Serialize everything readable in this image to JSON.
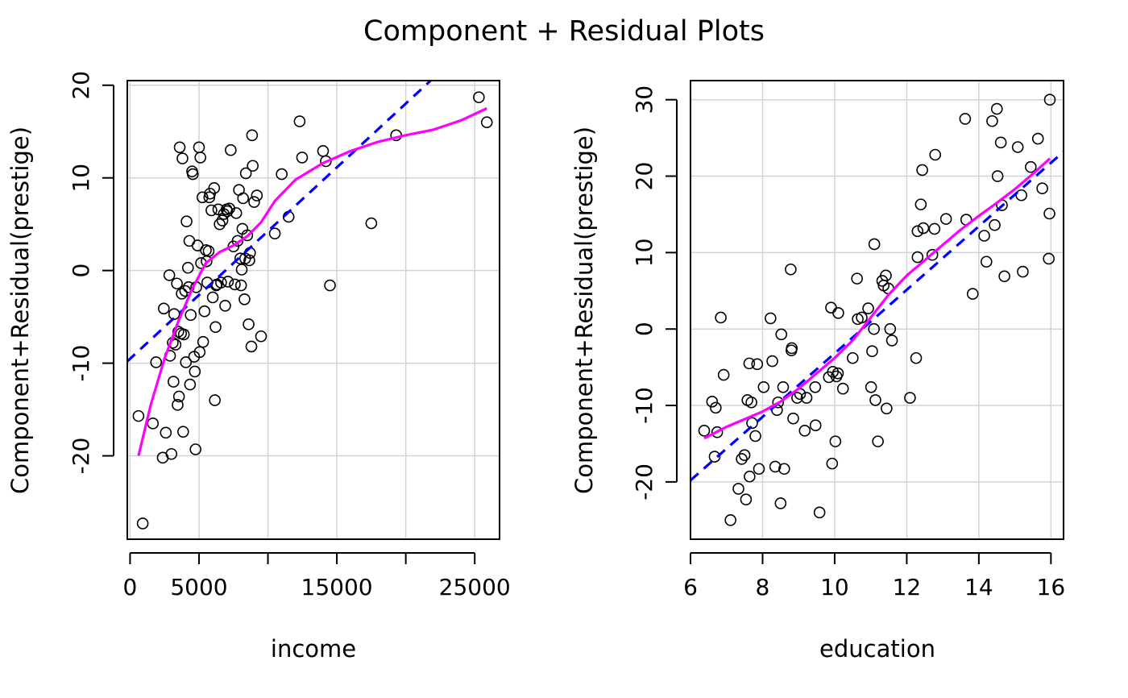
{
  "title": "Component + Residual Plots",
  "colors": {
    "points": "#000000",
    "fit_line": "#0000ff",
    "smooth_line": "#ff00ff",
    "grid": "#d3d3d3"
  },
  "chart_data": [
    {
      "type": "scatter",
      "xlabel": "income",
      "ylabel": "Component+Residual(prestige)",
      "xlim": [
        -200,
        26800
      ],
      "ylim": [
        -29,
        20.5
      ],
      "xticks": [
        0,
        5000,
        10000,
        15000,
        20000,
        25000
      ],
      "xtick_labels": [
        "0",
        "5000",
        "",
        "15000",
        "",
        "25000"
      ],
      "yticks": [
        -20,
        -10,
        0,
        10,
        20
      ],
      "ytick_labels": [
        "-20",
        "-10",
        "0",
        "10",
        "20"
      ],
      "grid": true,
      "linear_fit": {
        "x": [
          -200,
          21800
        ],
        "y": [
          -9.8,
          20.5
        ]
      },
      "smooth": {
        "x": [
          611,
          1500,
          2500,
          3500,
          4500,
          5500,
          6500,
          7500,
          8500,
          9500,
          10500,
          12000,
          14000,
          16000,
          18000,
          20000,
          22000,
          24000,
          25879
        ],
        "y": [
          -20,
          -14.5,
          -9.5,
          -5.5,
          -2,
          0.8,
          2,
          2.7,
          3.7,
          5.2,
          7.5,
          9.8,
          11.6,
          12.9,
          13.9,
          14.6,
          15.2,
          16.2,
          17.5
        ]
      },
      "points": {
        "x": [
          611,
          918,
          1656,
          1890,
          2370,
          2448,
          2594,
          2847,
          2901,
          3000,
          3100,
          3150,
          3200,
          3300,
          3400,
          3450,
          3500,
          3550,
          3600,
          3700,
          3750,
          3800,
          3850,
          3900,
          4000,
          4050,
          4100,
          4200,
          4250,
          4300,
          4350,
          4400,
          4500,
          4550,
          4650,
          4700,
          4750,
          4800,
          4900,
          5000,
          5050,
          5100,
          5150,
          5250,
          5300,
          5400,
          5500,
          5550,
          5600,
          5700,
          5750,
          5800,
          5900,
          6000,
          6100,
          6150,
          6200,
          6250,
          6300,
          6400,
          6500,
          6600,
          6700,
          6800,
          6900,
          7000,
          7050,
          7100,
          7200,
          7300,
          7500,
          7600,
          7700,
          7800,
          7900,
          8000,
          8050,
          8100,
          8150,
          8200,
          8300,
          8350,
          8400,
          8500,
          8600,
          8650,
          8700,
          8800,
          8850,
          8900,
          9000,
          9200,
          9500,
          10500,
          11000,
          11500,
          12300,
          12480,
          14000,
          14200,
          14500,
          17500,
          19300,
          25300,
          25879
        ],
        "y": [
          -15.7,
          -27.3,
          -16.5,
          -9.9,
          -20.2,
          -4.1,
          -17.5,
          -0.5,
          -9.2,
          -19.8,
          -7.8,
          -12,
          -4.7,
          -8,
          -1.4,
          -14.5,
          -6.6,
          -13.6,
          13.3,
          -6.8,
          -2.5,
          12.1,
          -17.4,
          -6.9,
          -2.2,
          -9.9,
          5.3,
          0.3,
          -1.8,
          3.2,
          -12.3,
          -4.8,
          10.7,
          10.4,
          -9.3,
          -10.9,
          -19.3,
          -1.8,
          2.7,
          13.3,
          -8.8,
          12.2,
          0.8,
          7.9,
          -7.7,
          -4.4,
          2.2,
          1,
          -1.3,
          2.1,
          7.9,
          8.3,
          6.5,
          -2.9,
          8.9,
          -14,
          -6.1,
          -1.6,
          -1.5,
          6.6,
          5,
          -1.3,
          5.4,
          6.1,
          -3.8,
          6.6,
          6.4,
          -1.2,
          6.7,
          13,
          2.6,
          -1.5,
          6.2,
          3.2,
          8.7,
          1.3,
          -1.6,
          0.1,
          4.5,
          7.8,
          -3.1,
          1.3,
          10.5,
          3.8,
          -5.8,
          1.1,
          1.9,
          -8.2,
          14.6,
          11.3,
          7.4,
          8.1,
          -7.1,
          4,
          10.4,
          5.8,
          16.1,
          12.2,
          12.9,
          11.8,
          -1.6,
          5.1,
          14.6,
          18.7,
          16
        ]
      }
    },
    {
      "type": "scatter",
      "xlabel": "education",
      "ylabel": "Component+Residual(prestige)",
      "xlim": [
        6,
        16.35
      ],
      "ylim": [
        -27.5,
        32.5
      ],
      "xticks": [
        6,
        8,
        10,
        12,
        14,
        16
      ],
      "xtick_labels": [
        "6",
        "8",
        "10",
        "12",
        "14",
        "16"
      ],
      "yticks": [
        -20,
        -10,
        0,
        10,
        20,
        30
      ],
      "ytick_labels": [
        "-20",
        "-10",
        "0",
        "10",
        "20",
        "30"
      ],
      "grid": true,
      "linear_fit": {
        "x": [
          6,
          16.35
        ],
        "y": [
          -19.8,
          23.2
        ]
      },
      "smooth": {
        "x": [
          6.38,
          7,
          7.5,
          8,
          8.5,
          9,
          9.5,
          10,
          10.5,
          11,
          11.5,
          12,
          12.5,
          13,
          13.5,
          14,
          14.5,
          15,
          15.5,
          15.97
        ],
        "y": [
          -14.3,
          -12.8,
          -11.8,
          -10.8,
          -9.5,
          -7.8,
          -5.8,
          -3.8,
          -1.5,
          1.5,
          4.5,
          7,
          9,
          11,
          13,
          14.8,
          16.5,
          18.3,
          20.3,
          22.3
        ]
      },
      "points": {
        "x": [
          6.38,
          6.6,
          6.67,
          6.7,
          6.74,
          6.84,
          6.92,
          7.11,
          7.33,
          7.42,
          7.5,
          7.54,
          7.58,
          7.63,
          7.64,
          7.69,
          7.71,
          7.8,
          7.85,
          7.9,
          8.03,
          8.22,
          8.27,
          8.35,
          8.4,
          8.43,
          8.5,
          8.52,
          8.57,
          8.6,
          8.78,
          8.8,
          8.81,
          8.85,
          8.96,
          9.04,
          9.17,
          9.22,
          9.46,
          9.47,
          9.58,
          9.84,
          9.9,
          9.93,
          9.95,
          10.02,
          10.05,
          10.09,
          10.1,
          10.23,
          10.5,
          10.62,
          10.64,
          10.75,
          10.93,
          11.01,
          11.04,
          11.09,
          11.1,
          11.13,
          11.2,
          11.32,
          11.36,
          11.42,
          11.44,
          11.49,
          11.54,
          11.59,
          12.09,
          12.26,
          12.3,
          12.3,
          12.39,
          12.43,
          12.46,
          12.71,
          12.77,
          12.79,
          13.09,
          13.62,
          13.65,
          13.83,
          14.15,
          14.21,
          14.37,
          14.44,
          14.5,
          14.52,
          14.61,
          14.64,
          14.71,
          15.08,
          15.18,
          15.22,
          15.44,
          15.64,
          15.76,
          15.94,
          15.96,
          15.97
        ],
        "y": [
          -13.3,
          -9.5,
          -16.7,
          -10.3,
          -13.5,
          1.5,
          -6,
          -25,
          -20.9,
          -17,
          -16.5,
          -22.3,
          -9.3,
          -4.5,
          -19.3,
          -9.6,
          -12.3,
          -14,
          -4.6,
          -18.3,
          -7.6,
          1.4,
          -4.2,
          -18,
          -10.6,
          -9.6,
          -22.8,
          -0.7,
          -7.6,
          -18.3,
          7.8,
          -2.8,
          -2.5,
          -11.7,
          -9,
          -8.5,
          -13.3,
          -9,
          -7.6,
          -12.6,
          -24,
          -6.3,
          2.8,
          -17.6,
          -5.6,
          -14.7,
          -6.2,
          -5.8,
          2.1,
          -7.8,
          -3.8,
          6.6,
          1.3,
          1.5,
          2.7,
          -7.6,
          -2.9,
          0.0,
          11.1,
          -9.3,
          -14.7,
          6.3,
          5.7,
          7,
          -10.4,
          5.3,
          0.0,
          -1.5,
          -9,
          -3.8,
          9.4,
          12.8,
          16.3,
          20.8,
          13.2,
          9.7,
          13.1,
          22.8,
          14.4,
          27.5,
          14.3,
          4.6,
          12.2,
          8.8,
          27.2,
          13.6,
          28.8,
          20,
          24.4,
          16.2,
          6.9,
          23.8,
          17.5,
          7.5,
          21.2,
          24.9,
          18.4,
          9.2,
          15.1,
          30
        ]
      }
    }
  ]
}
